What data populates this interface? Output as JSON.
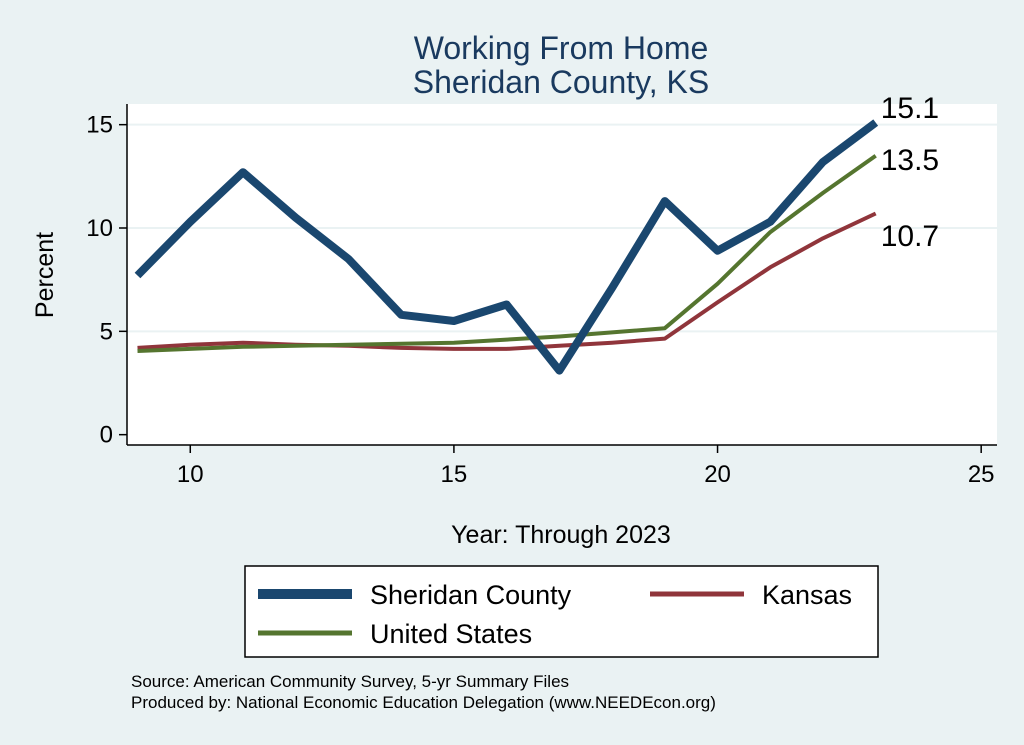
{
  "chart_data": {
    "type": "line",
    "title": "Working From Home",
    "subtitle": "Sheridan County, KS",
    "xlabel": "Year: Through 2023",
    "ylabel": "Percent",
    "xlim": [
      8.8,
      25.3
    ],
    "ylim": [
      -0.5,
      16.0
    ],
    "xticks": [
      10,
      15,
      20,
      25
    ],
    "yticks": [
      0,
      5,
      10,
      15
    ],
    "grid": true,
    "legend_position": "bottom",
    "series": [
      {
        "name": "Sheridan County",
        "color": "#1a476f",
        "x": [
          9,
          10,
          11,
          12,
          13,
          14,
          15,
          16,
          17,
          18,
          19,
          20,
          21,
          22,
          23
        ],
        "values": [
          7.7,
          10.3,
          12.7,
          10.5,
          8.5,
          5.8,
          5.5,
          6.3,
          3.1,
          7.1,
          11.3,
          8.9,
          10.3,
          13.2,
          15.1
        ],
        "end_label": "15.1"
      },
      {
        "name": "Kansas",
        "color": "#90353b",
        "x": [
          9,
          10,
          11,
          12,
          13,
          14,
          15,
          16,
          17,
          18,
          19,
          20,
          21,
          22,
          23
        ],
        "values": [
          4.2,
          4.35,
          4.45,
          4.35,
          4.3,
          4.2,
          4.15,
          4.15,
          4.3,
          4.45,
          4.65,
          6.4,
          8.1,
          9.5,
          10.7
        ],
        "end_label": "10.7"
      },
      {
        "name": "United States",
        "color": "#55752f",
        "x": [
          9,
          10,
          11,
          12,
          13,
          14,
          15,
          16,
          17,
          18,
          19,
          20,
          21,
          22,
          23
        ],
        "values": [
          4.05,
          4.15,
          4.25,
          4.3,
          4.35,
          4.4,
          4.45,
          4.6,
          4.75,
          4.95,
          5.15,
          7.3,
          9.8,
          11.7,
          13.5
        ],
        "end_label": "13.5"
      }
    ]
  },
  "notes": {
    "source": "Source: American Community Survey, 5-yr Summary Files",
    "produced": "Produced by: National Economic Education Delegation (www.NEEDEcon.org)"
  }
}
